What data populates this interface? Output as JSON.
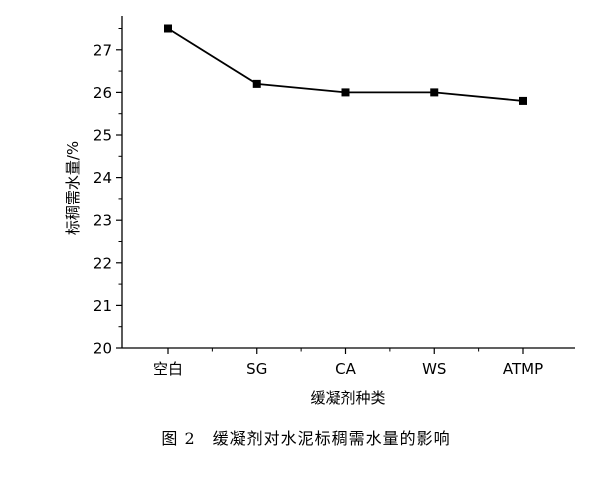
{
  "chart_data": {
    "type": "line",
    "categories": [
      "空白",
      "SG",
      "CA",
      "WS",
      "ATMP"
    ],
    "series": [
      {
        "values": [
          27.5,
          26.2,
          26.0,
          26.0,
          25.8
        ]
      }
    ],
    "xlabel": "缓凝剂种类",
    "ylabel": "标稠需水量/%",
    "ylim": [
      20,
      27.5
    ],
    "yticks": [
      20,
      21,
      22,
      23,
      24,
      25,
      26,
      27
    ],
    "grid": false,
    "marker": "square",
    "line_color": "#000000"
  },
  "caption": "图 2　缓凝剂对水泥标稠需水量的影响"
}
